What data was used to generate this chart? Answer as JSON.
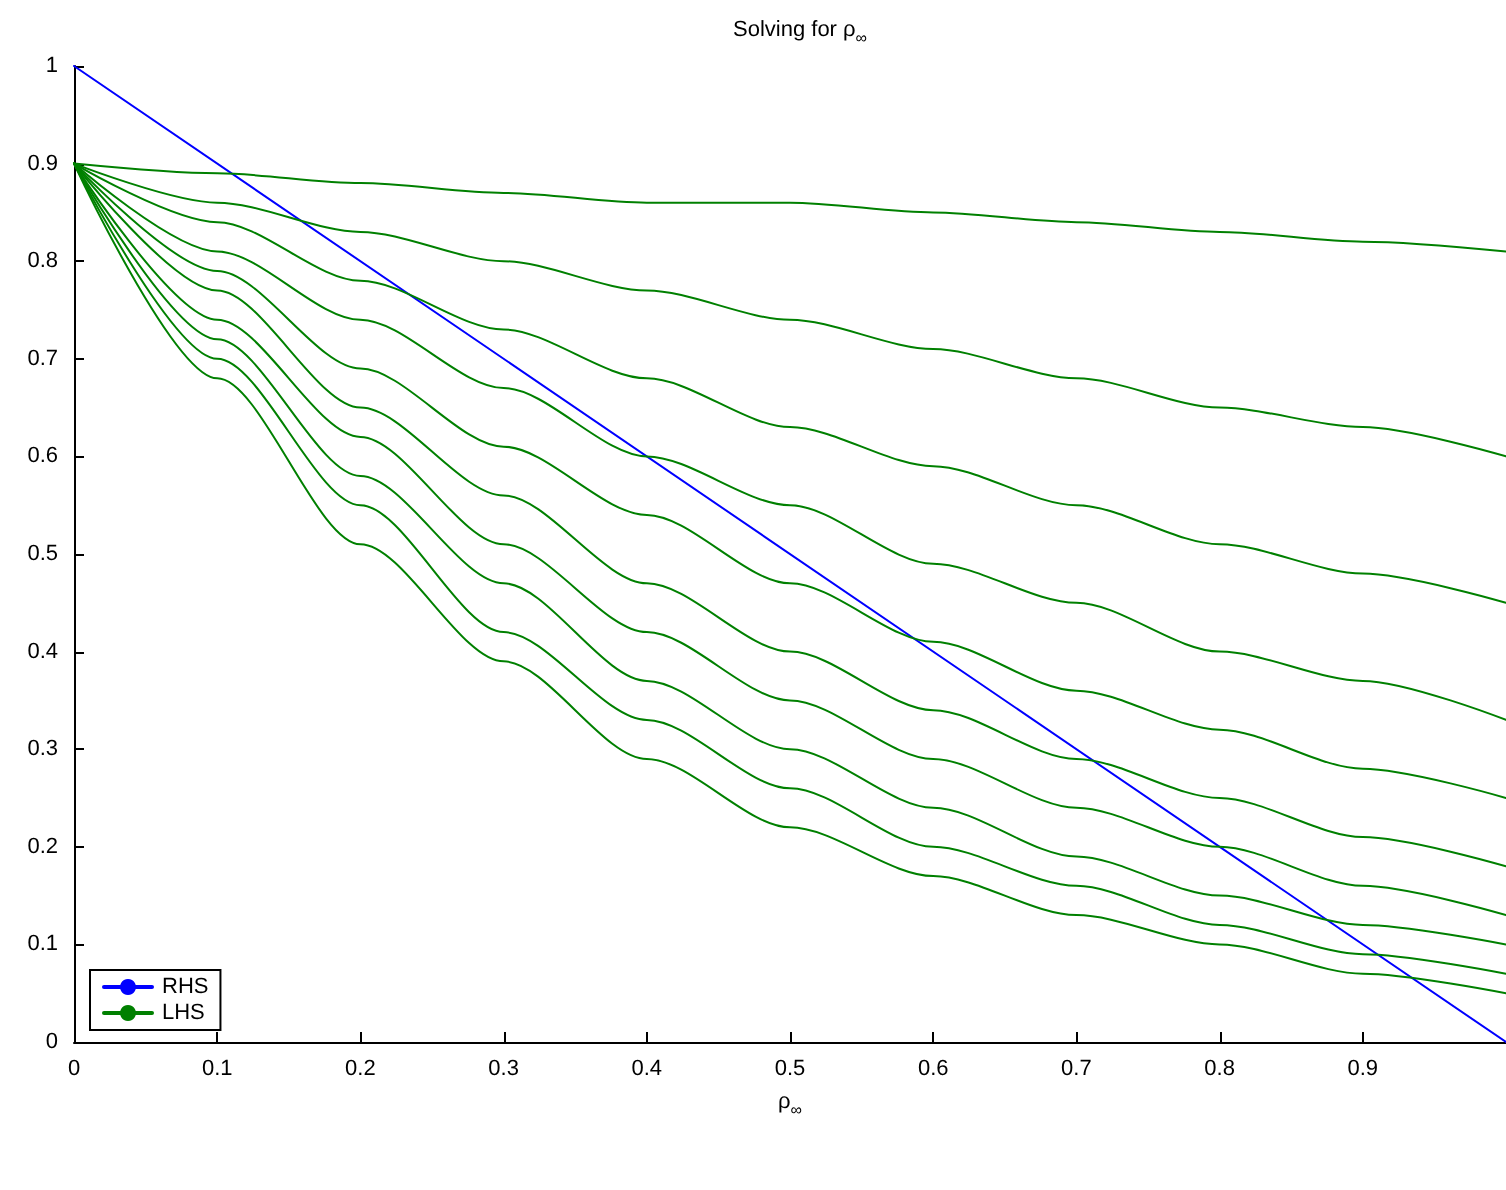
{
  "chart_data": {
    "type": "line",
    "title": "Solving for ρ$_{∞}$",
    "xlabel": "ρ$_{∞}$",
    "x": [
      0,
      0.1,
      0.2,
      0.3,
      0.4,
      0.5,
      0.6,
      0.7,
      0.8,
      0.9,
      1
    ],
    "series": [
      {
        "name": "RHS",
        "color": "#0000ff",
        "x": [
          0,
          1
        ],
        "values": [
          1,
          0
        ]
      },
      {
        "name": "LHS",
        "color": "#008000",
        "values": [
          0.9,
          0.89,
          0.88,
          0.87,
          0.86,
          0.86,
          0.85,
          0.84,
          0.83,
          0.82,
          0.81
        ]
      },
      {
        "color": "#008000",
        "values": [
          0.9,
          0.86,
          0.83,
          0.8,
          0.77,
          0.74,
          0.71,
          0.68,
          0.65,
          0.63,
          0.6
        ]
      },
      {
        "color": "#008000",
        "values": [
          0.9,
          0.84,
          0.78,
          0.73,
          0.68,
          0.63,
          0.59,
          0.55,
          0.51,
          0.48,
          0.45
        ]
      },
      {
        "color": "#008000",
        "values": [
          0.9,
          0.81,
          0.74,
          0.67,
          0.6,
          0.55,
          0.49,
          0.45,
          0.4,
          0.37,
          0.33
        ]
      },
      {
        "color": "#008000",
        "values": [
          0.9,
          0.79,
          0.69,
          0.61,
          0.54,
          0.47,
          0.41,
          0.36,
          0.32,
          0.28,
          0.25
        ]
      },
      {
        "color": "#008000",
        "values": [
          0.9,
          0.77,
          0.65,
          0.56,
          0.47,
          0.4,
          0.34,
          0.29,
          0.25,
          0.21,
          0.18
        ]
      },
      {
        "color": "#008000",
        "values": [
          0.9,
          0.74,
          0.62,
          0.51,
          0.42,
          0.35,
          0.29,
          0.24,
          0.2,
          0.16,
          0.13
        ]
      },
      {
        "color": "#008000",
        "values": [
          0.9,
          0.72,
          0.58,
          0.47,
          0.37,
          0.3,
          0.24,
          0.19,
          0.15,
          0.12,
          0.1
        ]
      },
      {
        "color": "#008000",
        "values": [
          0.9,
          0.7,
          0.55,
          0.42,
          0.33,
          0.26,
          0.2,
          0.16,
          0.12,
          0.09,
          0.07
        ]
      },
      {
        "color": "#008000",
        "values": [
          0.9,
          0.68,
          0.51,
          0.39,
          0.29,
          0.22,
          0.17,
          0.13,
          0.1,
          0.07,
          0.05
        ]
      }
    ],
    "xlim": [
      0,
      1
    ],
    "xticks": [
      0,
      0.1,
      0.2,
      0.3,
      0.4,
      0.5,
      0.6,
      0.7,
      0.8,
      0.9
    ],
    "ylim": [
      0,
      1
    ],
    "yticks": [
      0,
      0.1,
      0.2,
      0.3,
      0.4,
      0.5,
      0.6,
      0.7,
      0.8,
      0.9,
      1
    ],
    "grid": false,
    "legend": "bottom left",
    "marker": "none",
    "line_style": "solid"
  }
}
